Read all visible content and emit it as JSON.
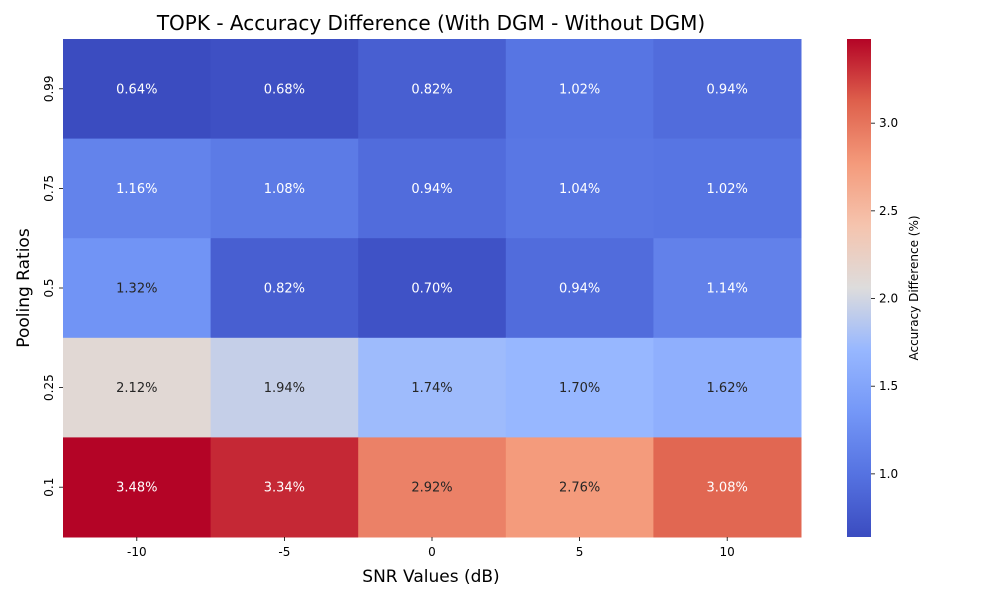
{
  "chart_data": {
    "type": "heatmap",
    "title": "TOPK - Accuracy Difference (With DGM - Without DGM)",
    "xlabel": "SNR Values (dB)",
    "ylabel": "Pooling Ratios",
    "x_categories": [
      "-10",
      "-5",
      "0",
      "5",
      "10"
    ],
    "y_categories": [
      "0.99",
      "0.75",
      "0.5",
      "0.25",
      "0.1"
    ],
    "values": [
      [
        0.64,
        0.68,
        0.82,
        1.02,
        0.94
      ],
      [
        1.16,
        1.08,
        0.94,
        1.04,
        1.02
      ],
      [
        1.32,
        0.82,
        0.7,
        0.94,
        1.14
      ],
      [
        2.12,
        1.94,
        1.74,
        1.7,
        1.62
      ],
      [
        3.48,
        3.34,
        2.92,
        2.76,
        3.08
      ]
    ],
    "cell_labels": [
      [
        "0.64%",
        "0.68%",
        "0.82%",
        "1.02%",
        "0.94%"
      ],
      [
        "1.16%",
        "1.08%",
        "0.94%",
        "1.04%",
        "1.02%"
      ],
      [
        "1.32%",
        "0.82%",
        "0.70%",
        "0.94%",
        "1.14%"
      ],
      [
        "2.12%",
        "1.94%",
        "1.74%",
        "1.70%",
        "1.62%"
      ],
      [
        "3.48%",
        "3.34%",
        "2.92%",
        "2.76%",
        "3.08%"
      ]
    ],
    "colormap": "coolwarm",
    "vmin": 0.64,
    "vmax": 3.48,
    "colorbar": {
      "label": "Accuracy Difference (%)",
      "ticks": [
        "1.0",
        "1.5",
        "2.0",
        "2.5",
        "3.0"
      ]
    }
  }
}
